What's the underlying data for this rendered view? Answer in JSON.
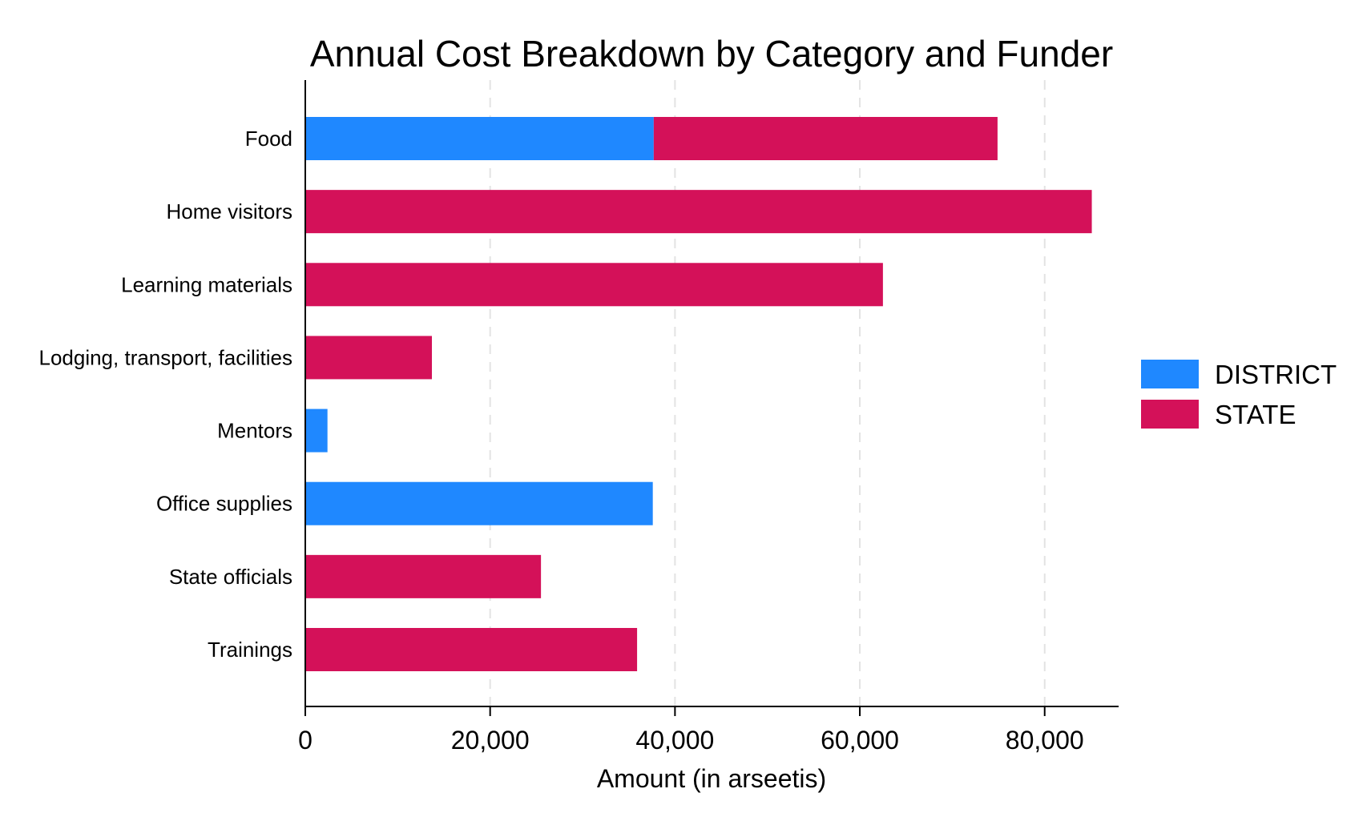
{
  "chart_data": {
    "type": "bar",
    "orientation": "horizontal",
    "stacked": true,
    "title": "Annual Cost Breakdown by Category and Funder",
    "xlabel": "Amount (in arseetis)",
    "ylabel": "",
    "xlim": [
      0,
      88000
    ],
    "xticks": [
      0,
      20000,
      40000,
      60000,
      80000
    ],
    "xtick_labels": [
      "0",
      "20,000",
      "40,000",
      "60,000",
      "80,000"
    ],
    "grid": "vertical dashed",
    "legend_position": "right",
    "categories": [
      "Food",
      "Home visitors",
      "Learning materials",
      "Lodging, transport, facilities",
      "Mentors",
      "Office supplies",
      "State officials",
      "Trainings"
    ],
    "series": [
      {
        "name": "DISTRICT",
        "color": "#1f88ff",
        "values": [
          37700,
          0,
          0,
          0,
          2400,
          37600,
          0,
          0
        ]
      },
      {
        "name": "STATE",
        "color": "#d41159",
        "values": [
          37200,
          85100,
          62500,
          13700,
          0,
          0,
          25500,
          35900
        ]
      }
    ]
  }
}
